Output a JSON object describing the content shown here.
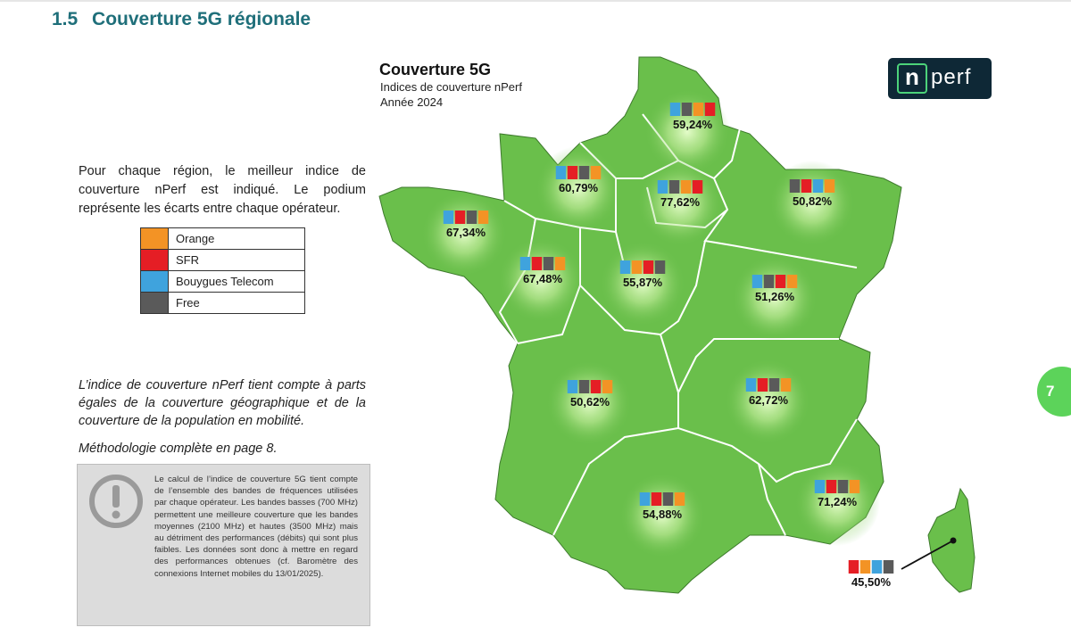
{
  "section": {
    "number": "1.5",
    "title": "Couverture 5G régionale"
  },
  "intro": "Pour chaque région, le meilleur indice de couverture nPerf est indiqué. Le podium représente les écarts entre chaque opérateur.",
  "legend": [
    {
      "label": "Orange",
      "color": "#f39325"
    },
    {
      "label": "SFR",
      "color": "#e51e25"
    },
    {
      "label": "Bouygues Telecom",
      "color": "#3fa3dd"
    },
    {
      "label": "Free",
      "color": "#5a5a5a"
    }
  ],
  "note_italic": "L’indice de couverture nPerf tient compte à parts égales de la couverture géographique et de la couverture de la population en mobilité.",
  "methodology": "Méthodologie complète en page 8.",
  "info_box": "Le calcul de l’indice de couverture 5G tient compte de l’ensemble des bandes de fréquences utilisées par chaque opérateur. Les bandes basses (700 MHz) permettent une meilleure couverture que les bandes moyennes (2100 MHz) et hautes (3500 MHz) mais au détriment des performances (débits) qui sont plus faibles. Les données sont donc à mettre en regard des performances obtenues (cf. Baromètre des connexions Internet mobiles du 13/01/2025).",
  "map": {
    "title": "Couverture 5G",
    "subtitle": "Indices de couverture nPerf",
    "year": "Année 2024",
    "colors": {
      "land": "#6abf4b",
      "glow": "#c8f0a0",
      "border": "#ffffff"
    },
    "regions": [
      {
        "name": "Hauts-de-France",
        "value": "59,24%",
        "podium": [
          "bouygues",
          "free",
          "orange",
          "sfr"
        ]
      },
      {
        "name": "Normandie",
        "value": "60,79%",
        "podium": [
          "bouygues",
          "sfr",
          "free",
          "orange"
        ]
      },
      {
        "name": "Île-de-France",
        "value": "77,62%",
        "podium": [
          "bouygues",
          "free",
          "orange",
          "sfr"
        ]
      },
      {
        "name": "Grand Est",
        "value": "50,82%",
        "podium": [
          "free",
          "sfr",
          "bouygues",
          "orange"
        ]
      },
      {
        "name": "Bretagne",
        "value": "67,34%",
        "podium": [
          "bouygues",
          "sfr",
          "free",
          "orange"
        ]
      },
      {
        "name": "Pays de la Loire",
        "value": "67,48%",
        "podium": [
          "bouygues",
          "sfr",
          "free",
          "orange"
        ]
      },
      {
        "name": "Centre-Val de Loire",
        "value": "55,87%",
        "podium": [
          "bouygues",
          "orange",
          "sfr",
          "free"
        ]
      },
      {
        "name": "Bourgogne-Franche-Comté",
        "value": "51,26%",
        "podium": [
          "bouygues",
          "free",
          "sfr",
          "orange"
        ]
      },
      {
        "name": "Nouvelle-Aquitaine",
        "value": "50,62%",
        "podium": [
          "bouygues",
          "free",
          "sfr",
          "orange"
        ]
      },
      {
        "name": "Auvergne-Rhône-Alpes",
        "value": "62,72%",
        "podium": [
          "bouygues",
          "sfr",
          "free",
          "orange"
        ]
      },
      {
        "name": "Occitanie",
        "value": "54,88%",
        "podium": [
          "bouygues",
          "sfr",
          "free",
          "orange"
        ]
      },
      {
        "name": "Provence-Alpes-Côte d'Azur",
        "value": "71,24%",
        "podium": [
          "bouygues",
          "sfr",
          "free",
          "orange"
        ]
      },
      {
        "name": "Corse",
        "value": "45,50%",
        "podium": [
          "sfr",
          "orange",
          "bouygues",
          "free"
        ]
      }
    ]
  },
  "logo": {
    "letter": "n",
    "text": "perf"
  },
  "page_number": "7"
}
